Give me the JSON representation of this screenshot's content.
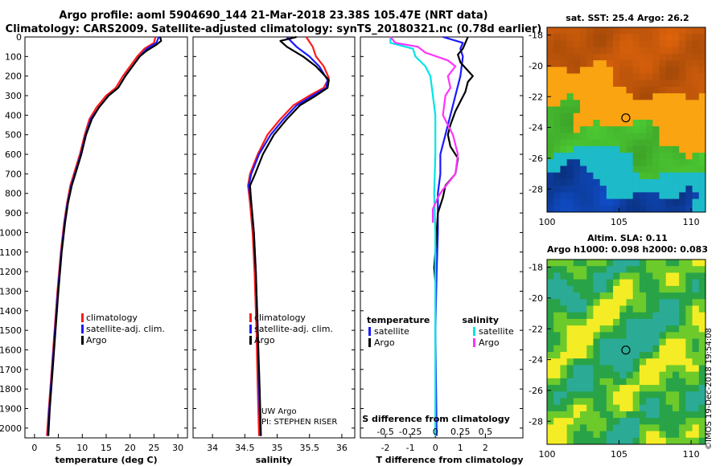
{
  "header": {
    "line1": "Argo profile: aoml 5904690_144 21-Mar-2018 23.38S 105.47E (NRT data)",
    "line2": "Climatology: CARS2009. Satellite-adjusted climatology: synTS_20180321.nc (0.78d earlier)"
  },
  "colors": {
    "climatology": "#ff1a1a",
    "satellite": "#1a1aff",
    "argo": "#000000",
    "sat_temp_diff": "#1a1aff",
    "sat_sal_diff": "#00e5e5",
    "argo_sal_diff": "#ff33ff"
  },
  "chart_data": [
    {
      "type": "line",
      "name": "temperature-profile",
      "xlabel": "temperature (deg C)",
      "ylabel": "",
      "xlim": [
        -2,
        32
      ],
      "ylim": [
        2050,
        0
      ],
      "xticks": [
        "0",
        "5",
        "10",
        "15",
        "20",
        "25",
        "30"
      ],
      "yticks": [
        "0",
        "100",
        "200",
        "300",
        "400",
        "500",
        "600",
        "700",
        "800",
        "900",
        "1000",
        "1100",
        "1200",
        "1300",
        "1400",
        "1500",
        "1600",
        "1700",
        "1800",
        "1900",
        "2000"
      ],
      "legend": [
        "climatology",
        "satellite-adj. clim.",
        "Argo"
      ],
      "series": [
        {
          "name": "climatology",
          "color": "#ff1a1a",
          "points": [
            [
              25.3,
              0
            ],
            [
              25,
              30
            ],
            [
              23,
              60
            ],
            [
              21.5,
              100
            ],
            [
              20,
              150
            ],
            [
              18.5,
              200
            ],
            [
              17,
              260
            ],
            [
              15,
              300
            ],
            [
              13,
              360
            ],
            [
              11.5,
              420
            ],
            [
              10.5,
              500
            ],
            [
              9.5,
              600
            ],
            [
              8.5,
              680
            ],
            [
              7.5,
              760
            ],
            [
              6.8,
              850
            ],
            [
              6.2,
              950
            ],
            [
              5.5,
              1100
            ],
            [
              4.8,
              1300
            ],
            [
              4.2,
              1500
            ],
            [
              3.6,
              1700
            ],
            [
              3,
              1900
            ],
            [
              2.6,
              2040
            ]
          ]
        },
        {
          "name": "satellite-adj. clim.",
          "color": "#1a1aff",
          "points": [
            [
              26,
              0
            ],
            [
              25.5,
              30
            ],
            [
              23.5,
              60
            ],
            [
              22,
              100
            ],
            [
              20.5,
              150
            ],
            [
              19,
              200
            ],
            [
              17.5,
              260
            ],
            [
              15.5,
              300
            ],
            [
              13.5,
              360
            ],
            [
              11.8,
              420
            ],
            [
              10.7,
              500
            ],
            [
              9.7,
              600
            ],
            [
              8.7,
              680
            ],
            [
              7.7,
              760
            ],
            [
              6.9,
              850
            ],
            [
              6.3,
              950
            ],
            [
              5.6,
              1100
            ],
            [
              4.9,
              1300
            ],
            [
              4.3,
              1500
            ],
            [
              3.7,
              1700
            ],
            [
              3.1,
              1900
            ],
            [
              2.8,
              2040
            ]
          ]
        },
        {
          "name": "Argo",
          "color": "#000000",
          "points": [
            [
              26.3,
              0
            ],
            [
              26.5,
              20
            ],
            [
              25.5,
              40
            ],
            [
              23.5,
              70
            ],
            [
              22,
              100
            ],
            [
              20.5,
              150
            ],
            [
              19,
              200
            ],
            [
              17.5,
              260
            ],
            [
              15.5,
              300
            ],
            [
              13.5,
              360
            ],
            [
              12,
              420
            ],
            [
              10.8,
              500
            ],
            [
              9.8,
              600
            ],
            [
              8.8,
              680
            ],
            [
              7.8,
              760
            ],
            [
              7,
              850
            ],
            [
              6.4,
              950
            ],
            [
              5.7,
              1100
            ],
            [
              5,
              1300
            ],
            [
              4.4,
              1500
            ],
            [
              3.8,
              1700
            ],
            [
              3.2,
              1900
            ],
            [
              2.9,
              2040
            ]
          ]
        }
      ]
    },
    {
      "type": "line",
      "name": "salinity-profile",
      "xlabel": "salinity",
      "ylabel": "",
      "xlim": [
        33.7,
        36.2
      ],
      "ylim": [
        2050,
        0
      ],
      "xticks": [
        "34",
        "34.5",
        "35",
        "35.5",
        "36"
      ],
      "legend": [
        "climatology",
        "satellite-adj. clim.",
        "Argo"
      ],
      "annotations": [
        "UW Argo",
        "PI: STEPHEN RISER"
      ],
      "series": [
        {
          "name": "climatology",
          "color": "#ff1a1a",
          "points": [
            [
              35.45,
              0
            ],
            [
              35.55,
              50
            ],
            [
              35.6,
              100
            ],
            [
              35.72,
              150
            ],
            [
              35.8,
              210
            ],
            [
              35.72,
              260
            ],
            [
              35.5,
              300
            ],
            [
              35.25,
              350
            ],
            [
              35.05,
              420
            ],
            [
              34.85,
              500
            ],
            [
              34.7,
              600
            ],
            [
              34.58,
              700
            ],
            [
              34.55,
              760
            ],
            [
              34.58,
              850
            ],
            [
              34.62,
              1000
            ],
            [
              34.65,
              1200
            ],
            [
              34.68,
              1500
            ],
            [
              34.7,
              1800
            ],
            [
              34.72,
              2040
            ]
          ]
        },
        {
          "name": "satellite-adj. clim.",
          "color": "#1a1aff",
          "points": [
            [
              35.15,
              0
            ],
            [
              35.3,
              50
            ],
            [
              35.5,
              100
            ],
            [
              35.65,
              150
            ],
            [
              35.78,
              220
            ],
            [
              35.76,
              260
            ],
            [
              35.55,
              300
            ],
            [
              35.3,
              350
            ],
            [
              35.1,
              420
            ],
            [
              34.9,
              500
            ],
            [
              34.72,
              600
            ],
            [
              34.6,
              700
            ],
            [
              34.56,
              760
            ],
            [
              34.6,
              850
            ],
            [
              34.64,
              1000
            ],
            [
              34.67,
              1200
            ],
            [
              34.7,
              1500
            ],
            [
              34.72,
              1800
            ],
            [
              34.74,
              2040
            ]
          ]
        },
        {
          "name": "Argo",
          "color": "#000000",
          "points": [
            [
              35.3,
              0
            ],
            [
              35.05,
              20
            ],
            [
              35.15,
              50
            ],
            [
              35.4,
              100
            ],
            [
              35.6,
              150
            ],
            [
              35.8,
              220
            ],
            [
              35.78,
              260
            ],
            [
              35.6,
              300
            ],
            [
              35.35,
              350
            ],
            [
              35.15,
              420
            ],
            [
              34.95,
              500
            ],
            [
              34.78,
              600
            ],
            [
              34.66,
              700
            ],
            [
              34.58,
              760
            ],
            [
              34.6,
              850
            ],
            [
              34.64,
              1000
            ],
            [
              34.67,
              1200
            ],
            [
              34.7,
              1500
            ],
            [
              34.73,
              1800
            ],
            [
              34.75,
              2040
            ]
          ]
        }
      ]
    },
    {
      "type": "line",
      "name": "difference-profile",
      "xlabel": "T difference from climatology",
      "x2label": "S difference from climatology",
      "xlim": [
        -3,
        3.5
      ],
      "ylim": [
        2050,
        0
      ],
      "xticks": [
        "-2",
        "-1",
        "0",
        "1",
        "2"
      ],
      "x2ticks": [
        "-0.5",
        "-0.25",
        "0",
        "0.25",
        "0.5"
      ],
      "legend_temperature": [
        "satellite",
        "Argo"
      ],
      "legend_salinity": [
        "satellite",
        "Argo"
      ],
      "series": [
        {
          "name": "satellite temperature",
          "color": "#1a1aff",
          "points": [
            [
              0.3,
              0
            ],
            [
              1.1,
              30
            ],
            [
              1,
              60
            ],
            [
              1.1,
              100
            ],
            [
              1,
              200
            ],
            [
              0.8,
              300
            ],
            [
              0.6,
              400
            ],
            [
              0.4,
              500
            ],
            [
              0.2,
              600
            ],
            [
              0.2,
              700
            ],
            [
              0.1,
              800
            ],
            [
              0.1,
              1000
            ],
            [
              0.05,
              1200
            ],
            [
              0,
              1500
            ],
            [
              0.05,
              2040
            ]
          ]
        },
        {
          "name": "Argo temperature",
          "color": "#000000",
          "points": [
            [
              1.3,
              0
            ],
            [
              1.2,
              30
            ],
            [
              1.1,
              60
            ],
            [
              0.9,
              90
            ],
            [
              1,
              130
            ],
            [
              1.5,
              200
            ],
            [
              1.3,
              230
            ],
            [
              1.2,
              280
            ],
            [
              1,
              330
            ],
            [
              0.8,
              380
            ],
            [
              0.6,
              450
            ],
            [
              0.5,
              500
            ],
            [
              0.6,
              560
            ],
            [
              0.9,
              620
            ],
            [
              0.8,
              700
            ],
            [
              0.4,
              760
            ],
            [
              0.3,
              820
            ],
            [
              0.1,
              900
            ],
            [
              0.05,
              1000
            ],
            [
              0,
              1100
            ],
            [
              -0.05,
              1180
            ],
            [
              0,
              1250
            ]
          ]
        },
        {
          "name": "satellite salinity",
          "color": "#00e5e5",
          "points": [
            [
              -1.8,
              0
            ],
            [
              -1.8,
              30
            ],
            [
              -0.9,
              60
            ],
            [
              -0.8,
              100
            ],
            [
              -0.4,
              150
            ],
            [
              -0.2,
              200
            ],
            [
              -0.1,
              300
            ],
            [
              0,
              400
            ],
            [
              0,
              600
            ],
            [
              -0.05,
              800
            ],
            [
              0,
              1000
            ],
            [
              0,
              1500
            ],
            [
              0,
              2040
            ]
          ]
        },
        {
          "name": "Argo salinity",
          "color": "#ff33ff",
          "points": [
            [
              -1.8,
              0
            ],
            [
              -1.6,
              30
            ],
            [
              -0.7,
              50
            ],
            [
              -0.4,
              80
            ],
            [
              0.5,
              120
            ],
            [
              0.8,
              150
            ],
            [
              0.5,
              200
            ],
            [
              0.6,
              260
            ],
            [
              0.4,
              300
            ],
            [
              0.3,
              400
            ],
            [
              0.7,
              500
            ],
            [
              0.9,
              600
            ],
            [
              0.8,
              700
            ],
            [
              0.3,
              780
            ],
            [
              0.1,
              820
            ],
            [
              -0.1,
              880
            ],
            [
              -0.1,
              950
            ]
          ]
        }
      ]
    }
  ],
  "maps": {
    "sst": {
      "title": "sat. SST: 25.4 Argo: 26.2",
      "xticks": [
        "100",
        "105",
        "110"
      ],
      "yticks": [
        "-18",
        "-20",
        "-22",
        "-24",
        "-26",
        "-28"
      ],
      "lon": [
        100,
        111
      ],
      "lat": [
        -17.5,
        -29.5
      ],
      "marker": {
        "lon": 105.47,
        "lat": -23.38
      }
    },
    "sla": {
      "title1": "Altim. SLA: 0.11",
      "title2": "Argo h1000: 0.098 h2000: 0.083",
      "xticks": [
        "100",
        "105",
        "110"
      ],
      "yticks": [
        "-18",
        "-20",
        "-22",
        "-24",
        "-26",
        "-28"
      ],
      "lon": [
        100,
        111
      ],
      "lat": [
        -17.5,
        -29.5
      ],
      "marker": {
        "lon": 105.47,
        "lat": -23.38
      }
    }
  },
  "footer": {
    "watermark": "©IMOS 19-Dec-2018 19:54:08"
  }
}
